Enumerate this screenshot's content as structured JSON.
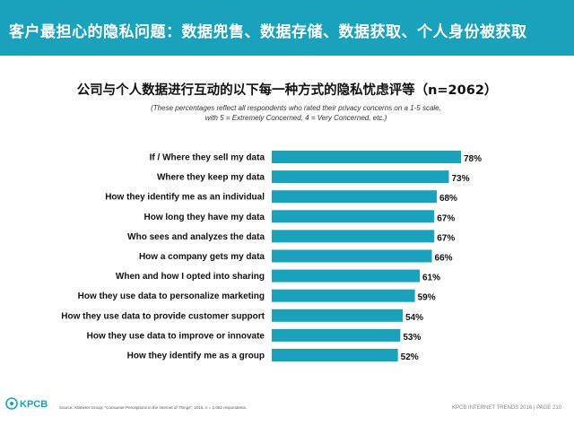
{
  "header": {
    "title": "客户最担心的隐私问题：数据兜售、数据存储、数据获取、个人身份被获取"
  },
  "footer": {
    "source": "Source: Altimeter Group, \"Consumer Perceptions in the Internet of Things\", 2015. n = 2,062 respondents.",
    "trend_label": "KPCB INTERNET TRENDS 2016 | PAGE",
    "page_number": "210",
    "logo_text": "KPCB"
  },
  "chart_data": {
    "type": "bar",
    "orientation": "horizontal",
    "title": "公司与个人数据进行互动的以下每一种方式的隐私忧虑评等（n=2062）",
    "subtitle_line1": "(These percentages reflect all respondents who rated their privacy concerns on a 1-5 scale,",
    "subtitle_line2": "with 5 = Extremely Concerned, 4 = Very Concerned, etc.)",
    "categories": [
      "If / Where they sell my data",
      "Where they keep my data",
      "How they identify me as an individual",
      "How long they have my data",
      "Who sees and analyzes the data",
      "How a company gets my data",
      "When and how I opted into sharing",
      "How they use data to personalize marketing",
      "How they use data to provide customer support",
      "How they use data to improve or innovate",
      "How they identify me as a group"
    ],
    "values": [
      78,
      73,
      68,
      67,
      67,
      66,
      61,
      59,
      54,
      53,
      52
    ],
    "value_labels": [
      "78%",
      "73%",
      "68%",
      "67%",
      "67%",
      "66%",
      "61%",
      "59%",
      "54%",
      "53%",
      "52%"
    ],
    "xlim": [
      0,
      100
    ],
    "grid": false,
    "bar_color": "#1aa2bd"
  }
}
